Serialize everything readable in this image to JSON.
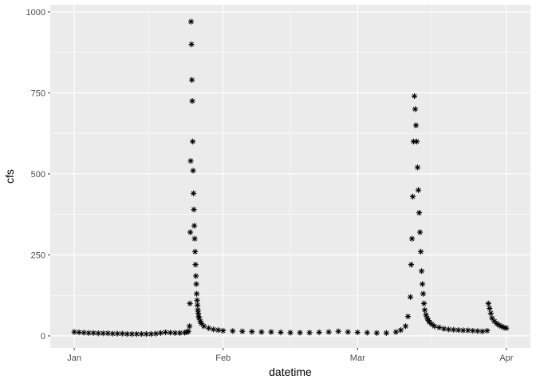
{
  "chart_data": {
    "type": "scatter",
    "title": "",
    "xlabel": "datetime",
    "ylabel": "cfs",
    "marker": "asterisk",
    "grid": true,
    "legend": "none",
    "colors": {
      "panel": "#ebebeb",
      "grid_major": "#ffffff",
      "points": "#000000",
      "tick_label": "#4d4d4d",
      "axis_title": "#000000"
    },
    "xlim": [
      "2018-12-27",
      "2019-04-06"
    ],
    "ylim": [
      -37,
      1022
    ],
    "x_ticks": [
      {
        "date": "2019-01-01",
        "label": "Jan"
      },
      {
        "date": "2019-02-01",
        "label": "Feb"
      },
      {
        "date": "2019-03-01",
        "label": "Mar"
      },
      {
        "date": "2019-04-01",
        "label": "Apr"
      }
    ],
    "y_ticks": [
      {
        "value": 0,
        "label": "0"
      },
      {
        "value": 250,
        "label": "250"
      },
      {
        "value": 500,
        "label": "500"
      },
      {
        "value": 750,
        "label": "750"
      },
      {
        "value": 1000,
        "label": "1000"
      }
    ],
    "series": [
      {
        "x": [
          "2019-01-01",
          "2019-01-02",
          "2019-01-03",
          "2019-01-04",
          "2019-01-05",
          "2019-01-06",
          "2019-01-07",
          "2019-01-08",
          "2019-01-09",
          "2019-01-10",
          "2019-01-11",
          "2019-01-12",
          "2019-01-13",
          "2019-01-14",
          "2019-01-15",
          "2019-01-16",
          "2019-01-17",
          "2019-01-18",
          "2019-01-19",
          "2019-01-20",
          "2019-01-21",
          "2019-01-22",
          "2019-01-23",
          "2019-01-24",
          "2019-01-24 12:00",
          "2019-01-24 18:00",
          "2019-01-25",
          "2019-01-25 02:00",
          "2019-01-25 04:00",
          "2019-01-25 06:00",
          "2019-01-25 08:00",
          "2019-01-25 10:00",
          "2019-01-25 12:00",
          "2019-01-25 14:00",
          "2019-01-25 16:00",
          "2019-01-25 18:00",
          "2019-01-25 20:00",
          "2019-01-25 22:00",
          "2019-01-26",
          "2019-01-26 02:00",
          "2019-01-26 04:00",
          "2019-01-26 06:00",
          "2019-01-26 08:00",
          "2019-01-26 10:00",
          "2019-01-26 12:00",
          "2019-01-26 14:00",
          "2019-01-26 16:00",
          "2019-01-26 18:00",
          "2019-01-26 20:00",
          "2019-01-26 22:00",
          "2019-01-27",
          "2019-01-27 06:00",
          "2019-01-27 12:00",
          "2019-01-28",
          "2019-01-29",
          "2019-01-30",
          "2019-01-31",
          "2019-02-01",
          "2019-02-03",
          "2019-02-05",
          "2019-02-07",
          "2019-02-09",
          "2019-02-11",
          "2019-02-13",
          "2019-02-15",
          "2019-02-17",
          "2019-02-19",
          "2019-02-21",
          "2019-02-23",
          "2019-02-25",
          "2019-02-27",
          "2019-03-01",
          "2019-03-03",
          "2019-03-05",
          "2019-03-07",
          "2019-03-09",
          "2019-03-10",
          "2019-03-11",
          "2019-03-11 12:00",
          "2019-03-12",
          "2019-03-12 04:00",
          "2019-03-12 08:00",
          "2019-03-12 12:00",
          "2019-03-12 16:00",
          "2019-03-12 20:00",
          "2019-03-13",
          "2019-03-13 04:00",
          "2019-03-13 08:00",
          "2019-03-13 12:00",
          "2019-03-13 16:00",
          "2019-03-13 20:00",
          "2019-03-14",
          "2019-03-14 04:00",
          "2019-03-14 08:00",
          "2019-03-14 12:00",
          "2019-03-14 16:00",
          "2019-03-14 20:00",
          "2019-03-15",
          "2019-03-15 06:00",
          "2019-03-15 12:00",
          "2019-03-15 18:00",
          "2019-03-16",
          "2019-03-16 12:00",
          "2019-03-17",
          "2019-03-18",
          "2019-03-19",
          "2019-03-20",
          "2019-03-21",
          "2019-03-22",
          "2019-03-23",
          "2019-03-24",
          "2019-03-25",
          "2019-03-26",
          "2019-03-27",
          "2019-03-28",
          "2019-03-28 06:00",
          "2019-03-28 12:00",
          "2019-03-28 18:00",
          "2019-03-29",
          "2019-03-29 12:00",
          "2019-03-30",
          "2019-03-30 12:00",
          "2019-03-31",
          "2019-03-31 12:00",
          "2019-04-01"
        ],
        "y": [
          12,
          11,
          10,
          9,
          9,
          8,
          8,
          8,
          7,
          7,
          7,
          6,
          6,
          6,
          6,
          6,
          6,
          7,
          9,
          11,
          10,
          9,
          9,
          10,
          12,
          14,
          30,
          100,
          320,
          540,
          970,
          900,
          790,
          725,
          600,
          510,
          440,
          390,
          340,
          300,
          260,
          220,
          185,
          160,
          130,
          110,
          95,
          80,
          70,
          60,
          55,
          45,
          38,
          30,
          24,
          20,
          18,
          16,
          15,
          14,
          13,
          12,
          12,
          11,
          10,
          10,
          10,
          11,
          12,
          14,
          12,
          11,
          10,
          9,
          9,
          12,
          18,
          30,
          60,
          120,
          220,
          300,
          430,
          600,
          740,
          700,
          650,
          600,
          520,
          450,
          380,
          320,
          260,
          200,
          160,
          130,
          100,
          80,
          65,
          55,
          48,
          42,
          36,
          30,
          26,
          22,
          20,
          19,
          18,
          17,
          17,
          16,
          15,
          14,
          16,
          100,
          85,
          70,
          55,
          45,
          38,
          33,
          29,
          26,
          24
        ]
      }
    ]
  }
}
